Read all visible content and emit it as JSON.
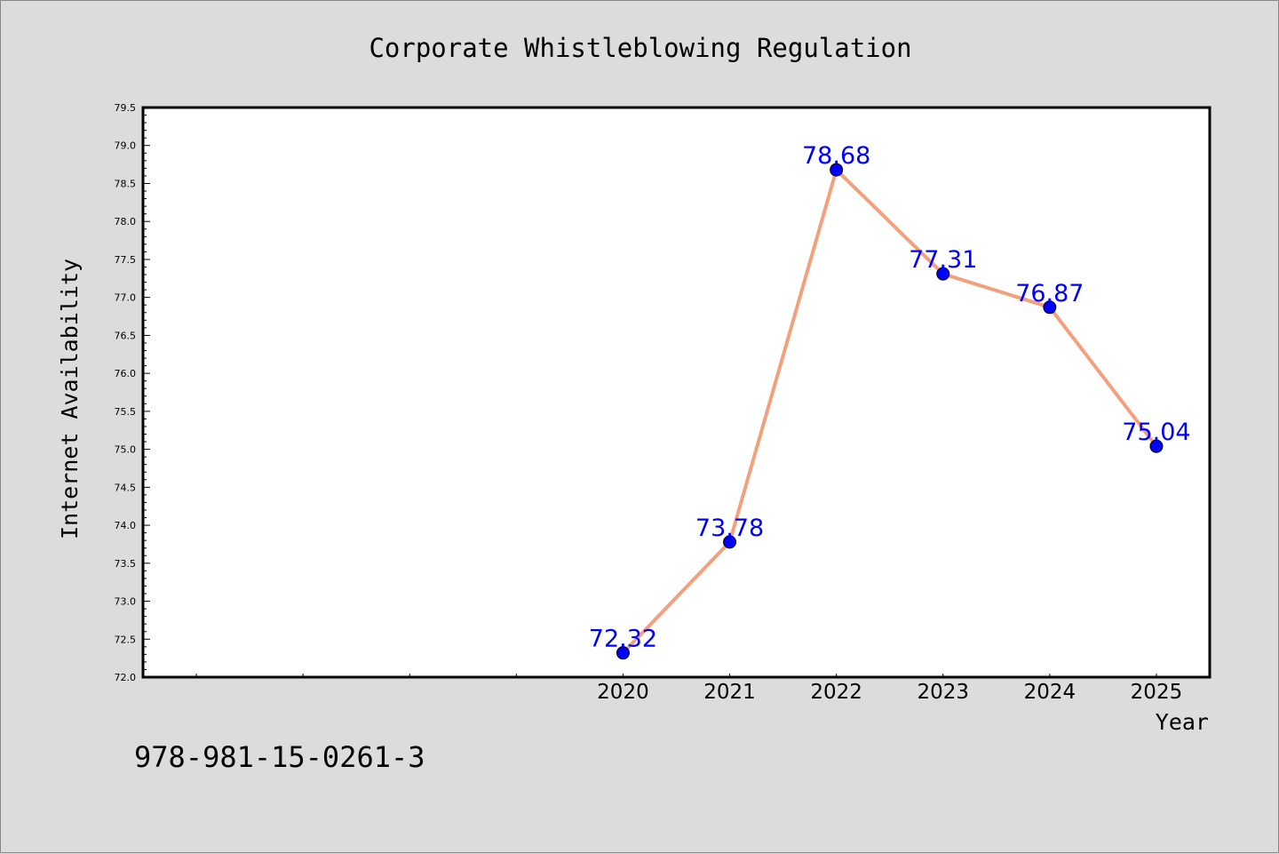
{
  "chart_data": {
    "type": "line",
    "title": "Corporate Whistleblowing Regulation",
    "xlabel": "Year",
    "ylabel": "Internet Availability",
    "x": [
      2020,
      2021,
      2022,
      2023,
      2024,
      2025
    ],
    "x_tick_labels": [
      "2020",
      "2021",
      "2022",
      "2023",
      "2024",
      "2025"
    ],
    "xlim": [
      2015.5,
      2025.5
    ],
    "ylim": [
      72.0,
      79.5
    ],
    "y_ticks": [
      "72.0",
      "72.5",
      "73.0",
      "73.5",
      "74.0",
      "74.5",
      "75.0",
      "75.5",
      "76.0",
      "76.5",
      "77.0",
      "77.5",
      "78.0",
      "78.5",
      "79.0",
      "79.5"
    ],
    "series": [
      {
        "values": [
          72.32,
          73.78,
          78.68,
          77.31,
          76.87,
          75.04
        ],
        "data_labels": [
          "72.32",
          "73.78",
          "78.68",
          "77.31",
          "76.87",
          "75.04"
        ],
        "line_color": "#f4a07c",
        "marker_color": "#0000ff"
      }
    ],
    "grid": false,
    "background_color": "#dcdcdc",
    "plot_background_color": "#ffffff",
    "label_color": "#0000ff"
  },
  "footer": {
    "isbn": "978-981-15-0261-3"
  }
}
